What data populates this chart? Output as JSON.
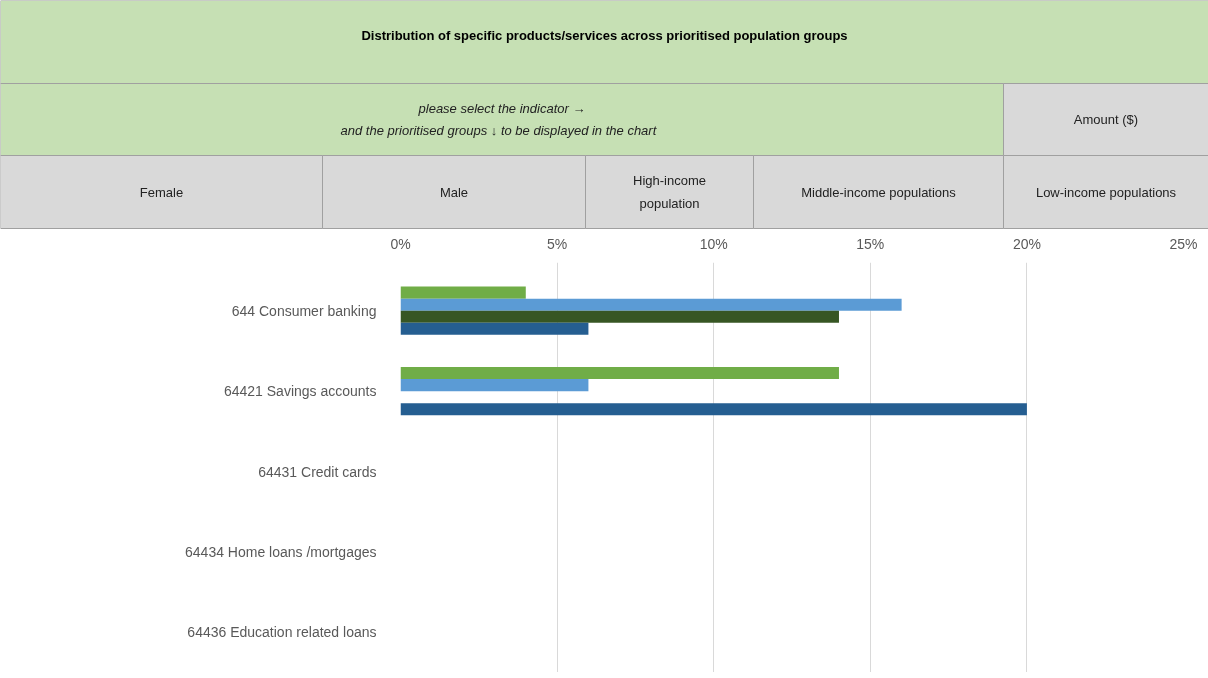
{
  "chart_data": {
    "type": "bar",
    "orientation": "horizontal",
    "title": "Distribution of specific products/services across prioritised population groups",
    "annotations": [
      "please select the indicator →\nand the  prioritised groups ↓  to be displayed in the chart",
      "Amount ($)",
      "Female",
      "Male",
      "High-income\npopulation",
      "Middle-income populations",
      "Low-income populations"
    ],
    "categories": [
      "644 Consumer banking",
      "64421 Savings accounts",
      "64431 Credit cards",
      "64434 Home loans /mortgages",
      "64436 Education related loans"
    ],
    "series": [
      {
        "color": "#70ad47",
        "values": [
          4,
          14,
          null,
          null,
          null
        ]
      },
      {
        "color": "#5b9bd5",
        "values": [
          16,
          6,
          null,
          null,
          null
        ]
      },
      {
        "color": "#375623",
        "values": [
          14,
          null,
          null,
          null,
          null
        ]
      },
      {
        "color": "#255e91",
        "values": [
          6,
          20,
          null,
          null,
          null
        ]
      }
    ],
    "xlim": [
      0,
      25
    ],
    "xticks": [
      {
        "value": 0,
        "label": "0%"
      },
      {
        "value": 5,
        "label": "5%"
      },
      {
        "value": 10,
        "label": "10%"
      },
      {
        "value": 15,
        "label": "15%"
      },
      {
        "value": 20,
        "label": "20%"
      },
      {
        "value": 25,
        "label": "25%"
      }
    ],
    "grid": "x"
  }
}
